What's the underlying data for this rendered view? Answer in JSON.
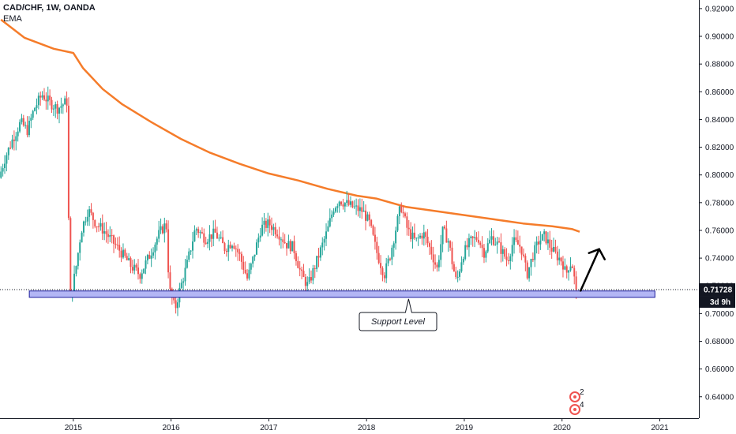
{
  "legend": {
    "symbol": "CAD/CHF, 1W, OANDA",
    "indicator": "EMA"
  },
  "colors": {
    "up": "#26a69a",
    "down": "#ef5350",
    "ema": "#f57c2a",
    "support_fill": "#b3b6f5",
    "support_stroke": "#1a1a9a",
    "badge_bg": "#131722",
    "grid": "#f0f3fa",
    "axis": "#131722"
  },
  "price_badge": {
    "value": "0.71728",
    "countdown": "3d 9h"
  },
  "annotations": {
    "support_label": "Support Level"
  },
  "icon_labels": {
    "top": "2",
    "bottom": "4"
  },
  "icons": [
    "tradingview-idea-icon",
    "up-arrow-icon"
  ],
  "chart_data": {
    "type": "candlestick",
    "symbol": "CAD/CHF",
    "timeframe": "1W",
    "source": "OANDA",
    "x_ticks": [
      "2015",
      "2016",
      "2017",
      "2018",
      "2019",
      "2020",
      "2021"
    ],
    "y_ticks": [
      "0.92000",
      "0.90000",
      "0.88000",
      "0.86000",
      "0.84000",
      "0.82000",
      "0.80000",
      "0.78000",
      "0.76000",
      "0.74000",
      "0.72000",
      "0.70000",
      "0.68000",
      "0.66000",
      "0.64000"
    ],
    "xlim": [
      2014.25,
      2021.4
    ],
    "ylim": [
      0.6245,
      0.9262
    ],
    "last_price": 0.71728,
    "ema": {
      "name": "EMA",
      "points": [
        [
          2014.26,
          0.912
        ],
        [
          2014.5,
          0.899
        ],
        [
          2014.8,
          0.891
        ],
        [
          2015.0,
          0.888
        ],
        [
          2015.1,
          0.877
        ],
        [
          2015.3,
          0.862
        ],
        [
          2015.5,
          0.851
        ],
        [
          2015.8,
          0.838
        ],
        [
          2016.1,
          0.826
        ],
        [
          2016.4,
          0.816
        ],
        [
          2016.7,
          0.808
        ],
        [
          2017.0,
          0.801
        ],
        [
          2017.3,
          0.796
        ],
        [
          2017.6,
          0.79
        ],
        [
          2017.9,
          0.785
        ],
        [
          2018.1,
          0.783
        ],
        [
          2018.4,
          0.777
        ],
        [
          2018.7,
          0.774
        ],
        [
          2019.0,
          0.771
        ],
        [
          2019.3,
          0.768
        ],
        [
          2019.6,
          0.765
        ],
        [
          2019.9,
          0.763
        ],
        [
          2020.1,
          0.761
        ],
        [
          2020.18,
          0.759
        ]
      ]
    },
    "price_path": [
      [
        2014.26,
        0.798
      ],
      [
        2014.32,
        0.812
      ],
      [
        2014.4,
        0.826
      ],
      [
        2014.48,
        0.838
      ],
      [
        2014.55,
        0.832
      ],
      [
        2014.62,
        0.848
      ],
      [
        2014.7,
        0.858
      ],
      [
        2014.78,
        0.852
      ],
      [
        2014.86,
        0.848
      ],
      [
        2014.93,
        0.852
      ],
      [
        2014.96,
        0.853
      ],
      [
        2014.98,
        0.705
      ],
      [
        2015.05,
        0.735
      ],
      [
        2015.1,
        0.76
      ],
      [
        2015.17,
        0.775
      ],
      [
        2015.25,
        0.765
      ],
      [
        2015.33,
        0.76
      ],
      [
        2015.42,
        0.752
      ],
      [
        2015.5,
        0.745
      ],
      [
        2015.6,
        0.735
      ],
      [
        2015.7,
        0.728
      ],
      [
        2015.8,
        0.742
      ],
      [
        2015.9,
        0.758
      ],
      [
        2015.97,
        0.765
      ],
      [
        2016.0,
        0.718
      ],
      [
        2016.06,
        0.703
      ],
      [
        2016.1,
        0.715
      ],
      [
        2016.18,
        0.735
      ],
      [
        2016.27,
        0.762
      ],
      [
        2016.37,
        0.754
      ],
      [
        2016.47,
        0.758
      ],
      [
        2016.57,
        0.747
      ],
      [
        2016.65,
        0.752
      ],
      [
        2016.72,
        0.742
      ],
      [
        2016.8,
        0.725
      ],
      [
        2016.86,
        0.74
      ],
      [
        2016.94,
        0.762
      ],
      [
        2017.02,
        0.765
      ],
      [
        2017.12,
        0.758
      ],
      [
        2017.2,
        0.75
      ],
      [
        2017.27,
        0.748
      ],
      [
        2017.35,
        0.728
      ],
      [
        2017.42,
        0.72
      ],
      [
        2017.48,
        0.732
      ],
      [
        2017.56,
        0.748
      ],
      [
        2017.62,
        0.76
      ],
      [
        2017.68,
        0.776
      ],
      [
        2017.74,
        0.782
      ],
      [
        2017.82,
        0.779
      ],
      [
        2017.9,
        0.776
      ],
      [
        2017.98,
        0.774
      ],
      [
        2018.05,
        0.765
      ],
      [
        2018.12,
        0.745
      ],
      [
        2018.2,
        0.728
      ],
      [
        2018.26,
        0.742
      ],
      [
        2018.33,
        0.765
      ],
      [
        2018.37,
        0.778
      ],
      [
        2018.44,
        0.76
      ],
      [
        2018.52,
        0.752
      ],
      [
        2018.6,
        0.758
      ],
      [
        2018.68,
        0.745
      ],
      [
        2018.74,
        0.732
      ],
      [
        2018.8,
        0.76
      ],
      [
        2018.86,
        0.752
      ],
      [
        2018.9,
        0.735
      ],
      [
        2018.94,
        0.722
      ],
      [
        2019.0,
        0.742
      ],
      [
        2019.08,
        0.752
      ],
      [
        2019.16,
        0.755
      ],
      [
        2019.22,
        0.744
      ],
      [
        2019.3,
        0.755
      ],
      [
        2019.38,
        0.748
      ],
      [
        2019.46,
        0.738
      ],
      [
        2019.52,
        0.752
      ],
      [
        2019.6,
        0.748
      ],
      [
        2019.66,
        0.728
      ],
      [
        2019.72,
        0.742
      ],
      [
        2019.78,
        0.752
      ],
      [
        2019.84,
        0.756
      ],
      [
        2019.9,
        0.748
      ],
      [
        2019.96,
        0.742
      ],
      [
        2020.02,
        0.738
      ],
      [
        2020.06,
        0.728
      ],
      [
        2020.09,
        0.735
      ],
      [
        2020.12,
        0.737
      ],
      [
        2020.16,
        0.718
      ]
    ],
    "support_zone": {
      "low": 0.7117,
      "high": 0.7163,
      "x_start": 2014.55,
      "x_end": 2020.95,
      "label": "Support Level"
    },
    "projection": {
      "from": [
        2020.19,
        0.7165
      ],
      "to": [
        2020.38,
        0.7465
      ]
    },
    "grid": false,
    "legend_position": "top-left"
  }
}
